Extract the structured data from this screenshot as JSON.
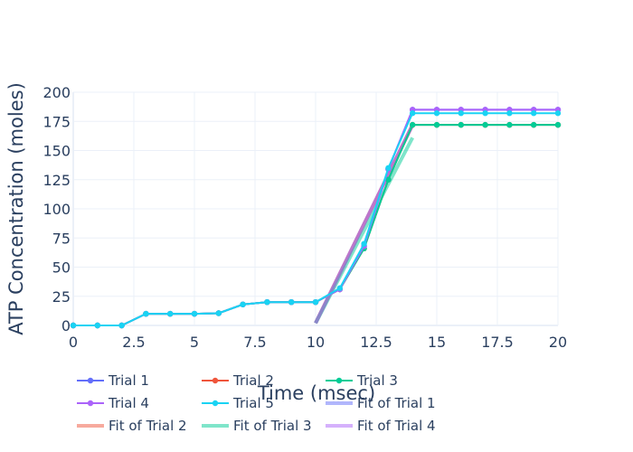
{
  "chart_data": {
    "type": "line",
    "title": "",
    "xlabel": "Time (msec)",
    "ylabel": "ATP Concentration (moles)",
    "xlim": [
      0,
      20
    ],
    "ylim": [
      0,
      200
    ],
    "xticks": [
      0,
      2.5,
      5,
      7.5,
      10,
      12.5,
      15,
      17.5,
      20
    ],
    "yticks": [
      0,
      25,
      50,
      75,
      100,
      125,
      150,
      175,
      200
    ],
    "xtick_labels": [
      "0",
      "2.5",
      "5",
      "7.5",
      "10",
      "12.5",
      "15",
      "17.5",
      "20"
    ],
    "ytick_labels": [
      "0",
      "25",
      "50",
      "75",
      "100",
      "125",
      "150",
      "175",
      "200"
    ],
    "grid": true,
    "legend_position": "bottom",
    "series": [
      {
        "name": "Trial 1",
        "color": "#636efa",
        "mode": "lines+markers",
        "x": [
          0,
          1,
          2,
          3,
          4,
          5,
          6,
          7,
          8,
          9,
          10,
          11,
          12,
          13,
          14,
          15,
          16,
          17,
          18,
          19,
          20
        ],
        "y": [
          0,
          0,
          0,
          10,
          10,
          10,
          10.5,
          18,
          20,
          20,
          20,
          31,
          68,
          134,
          185,
          185,
          185,
          185,
          185,
          185,
          185
        ]
      },
      {
        "name": "Trial 2",
        "color": "#ef553b",
        "mode": "lines+markers",
        "x": [
          0,
          1,
          2,
          3,
          4,
          5,
          6,
          7,
          8,
          9,
          10,
          11,
          12,
          13,
          14,
          15,
          16,
          17,
          18,
          19,
          20
        ],
        "y": [
          0,
          0,
          0,
          10,
          10,
          10,
          10.5,
          18,
          20,
          20,
          20,
          31,
          66,
          125,
          172,
          172,
          172,
          172,
          172,
          172,
          172
        ]
      },
      {
        "name": "Trial 3",
        "color": "#00cc96",
        "mode": "lines+markers",
        "x": [
          0,
          1,
          2,
          3,
          4,
          5,
          6,
          7,
          8,
          9,
          10,
          11,
          12,
          13,
          14,
          15,
          16,
          17,
          18,
          19,
          20
        ],
        "y": [
          0,
          0,
          0,
          10,
          10,
          10,
          10.5,
          18,
          20,
          20,
          20,
          31,
          66,
          125,
          172,
          172,
          172,
          172,
          172,
          172,
          172
        ]
      },
      {
        "name": "Trial 4",
        "color": "#ab63fa",
        "mode": "lines+markers",
        "x": [
          0,
          1,
          2,
          3,
          4,
          5,
          6,
          7,
          8,
          9,
          10,
          11,
          12,
          13,
          14,
          15,
          16,
          17,
          18,
          19,
          20
        ],
        "y": [
          0,
          0,
          0,
          10,
          10,
          10,
          10.5,
          18,
          20,
          20,
          20,
          31,
          68,
          134,
          185,
          185,
          185,
          185,
          185,
          185,
          185
        ]
      },
      {
        "name": "Trial 5",
        "color": "#19d3f3",
        "mode": "lines+markers",
        "x": [
          0,
          1,
          2,
          3,
          4,
          5,
          6,
          7,
          8,
          9,
          10,
          11,
          12,
          13,
          14,
          15,
          16,
          17,
          18,
          19,
          20
        ],
        "y": [
          0,
          0,
          0,
          10,
          10,
          10,
          10.5,
          18,
          20,
          20,
          20,
          32,
          70,
          135,
          182,
          182,
          182,
          182,
          182,
          182,
          182
        ]
      },
      {
        "name": "Fit of Trial 1",
        "color": "#636efa",
        "mode": "lines",
        "opacity": 0.5,
        "x": [
          10,
          14
        ],
        "y": [
          2,
          172
        ]
      },
      {
        "name": "Fit of Trial 2",
        "color": "#ef553b",
        "mode": "lines",
        "opacity": 0.5,
        "x": [
          10,
          14
        ],
        "y": [
          2,
          172
        ]
      },
      {
        "name": "Fit of Trial 3",
        "color": "#00cc96",
        "mode": "lines",
        "opacity": 0.5,
        "x": [
          10,
          14
        ],
        "y": [
          2,
          161
        ]
      },
      {
        "name": "Fit of Trial 4",
        "color": "#ab63fa",
        "mode": "lines",
        "opacity": 0.5,
        "x": [
          10,
          14
        ],
        "y": [
          2,
          172
        ]
      }
    ]
  }
}
